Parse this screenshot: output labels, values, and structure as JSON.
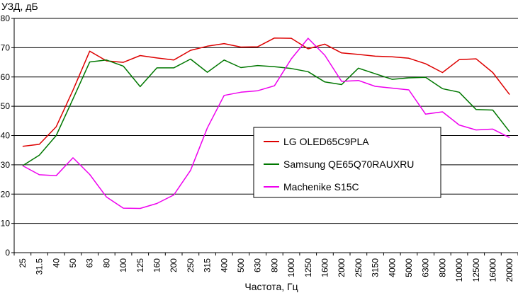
{
  "chart_data": {
    "type": "line",
    "title": "",
    "ylabel": "УЗД, дБ",
    "xlabel": "Частота, Гц",
    "ylim": [
      0,
      80
    ],
    "yticks": [
      0,
      10,
      20,
      30,
      40,
      50,
      60,
      70,
      80
    ],
    "grid": "horizontal",
    "legend_position": "right-center",
    "categories": [
      "25",
      "31.5",
      "40",
      "50",
      "63",
      "80",
      "100",
      "125",
      "160",
      "200",
      "250",
      "315",
      "400",
      "500",
      "630",
      "800",
      "1000",
      "1250",
      "1600",
      "2000",
      "2500",
      "3150",
      "4000",
      "5000",
      "6300",
      "8000",
      "10000",
      "12500",
      "16000",
      "20000"
    ],
    "series": [
      {
        "name": "LG OLED65C9PLA",
        "color": "#dd0000",
        "values": [
          36.3,
          37,
          43,
          55.5,
          68.8,
          65.5,
          65,
          67.3,
          66.5,
          65.8,
          69.1,
          70.5,
          71.4,
          70.2,
          70.3,
          73.3,
          73.2,
          69.6,
          71.2,
          68.2,
          67.7,
          67.1,
          66.9,
          66.4,
          64.5,
          61.5,
          65.9,
          66.2,
          61.5,
          54
        ]
      },
      {
        "name": "Samsung QE65Q70RAUXRU",
        "color": "#007700",
        "values": [
          29.7,
          33.3,
          40,
          52.5,
          65.1,
          65.8,
          63.7,
          56.7,
          63.1,
          63.1,
          66.1,
          61.6,
          65.8,
          63.2,
          63.9,
          63.5,
          62.9,
          61.8,
          58.3,
          57.4,
          63,
          61.1,
          59.2,
          59.7,
          59.9,
          56,
          54.8,
          48.9,
          48.7,
          41.3
        ]
      },
      {
        "name": "Machenike S15C",
        "color": "#ee00ee",
        "values": [
          29.7,
          26.6,
          26.3,
          32.4,
          26.7,
          19,
          15.2,
          15.1,
          16.8,
          19.7,
          28.1,
          42.6,
          53.7,
          54.8,
          55.3,
          57,
          66.2,
          73.2,
          67.4,
          58.5,
          58.8,
          56.8,
          56.2,
          55.6,
          47.3,
          48.1,
          43.6,
          41.9,
          42.2,
          39.3
        ]
      }
    ]
  }
}
